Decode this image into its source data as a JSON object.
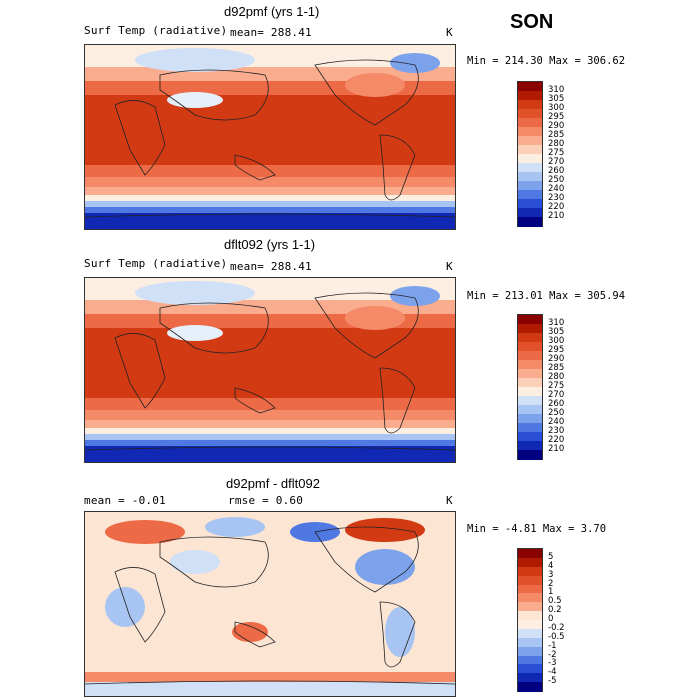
{
  "season": "SON",
  "panels": [
    {
      "title": "d92pmf (yrs 1-1)",
      "left_label": "Surf Temp (radiative)",
      "stat_label": "mean= 288.41",
      "units": "K",
      "minmax": "Min = 214.30 Max = 306.62",
      "kind": "abs"
    },
    {
      "title": "dflt092 (yrs 1-1)",
      "left_label": "Surf Temp (radiative)",
      "stat_label": "mean= 288.41",
      "units": "K",
      "minmax": "Min = 213.01 Max = 305.94",
      "kind": "abs"
    },
    {
      "title": "d92pmf - dflt092",
      "left_label": "mean =   -0.01",
      "stat_label": "rmse =   0.60",
      "units": "K",
      "minmax": "Min =  -4.81 Max =   3.70",
      "kind": "diff"
    }
  ],
  "colorbar_abs": {
    "labels": [
      "310",
      "305",
      "300",
      "295",
      "290",
      "285",
      "280",
      "275",
      "270",
      "260",
      "250",
      "240",
      "230",
      "220",
      "210"
    ],
    "colors": [
      "#8b0000",
      "#b01a00",
      "#d23a14",
      "#e2522a",
      "#ec6a45",
      "#f48a68",
      "#f9ac8e",
      "#fcd0b8",
      "#fdeee2",
      "#cfe0f7",
      "#a8c4f2",
      "#7da2ec",
      "#4f78e3",
      "#2a4fd6",
      "#1028b4",
      "#000080"
    ]
  },
  "colorbar_diff": {
    "labels": [
      "5",
      "4",
      "3",
      "2",
      "1",
      "0.5",
      "0.2",
      "0",
      "-0.2",
      "-0.5",
      "-1",
      "-2",
      "-3",
      "-4",
      "-5"
    ],
    "colors": [
      "#8b0000",
      "#b01a00",
      "#d23a14",
      "#e2522a",
      "#ec6a45",
      "#f48a68",
      "#f9ac8e",
      "#fde5d4",
      "#fdeee2",
      "#cfe0f7",
      "#a8c4f2",
      "#7da2ec",
      "#4f78e3",
      "#2a4fd6",
      "#1028b4",
      "#000080"
    ]
  }
}
